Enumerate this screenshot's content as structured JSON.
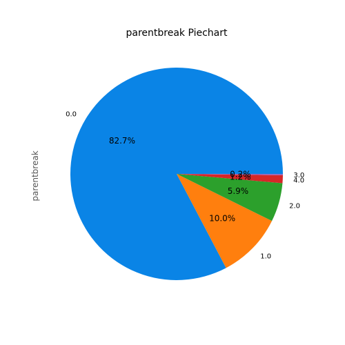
{
  "chart_data": {
    "type": "pie",
    "title": "parentbreak Piechart",
    "ylabel": "parentbreak",
    "slices": [
      {
        "label": "0.0",
        "value": 82.7,
        "pct_label": "82.7%",
        "color": "#0a84e6"
      },
      {
        "label": "1.0",
        "value": 10.0,
        "pct_label": "10.0%",
        "color": "#ff7f0e"
      },
      {
        "label": "2.0",
        "value": 5.9,
        "pct_label": "5.9%",
        "color": "#2ca02c"
      },
      {
        "label": "4.0",
        "value": 1.2,
        "pct_label": "1.2%",
        "color": "#d62728"
      },
      {
        "label": "3.0",
        "value": 0.2,
        "pct_label": "0.2%",
        "color": "#9467bd"
      }
    ],
    "start_angle_deg": 0,
    "direction": "counterclockwise",
    "legend": "none"
  }
}
